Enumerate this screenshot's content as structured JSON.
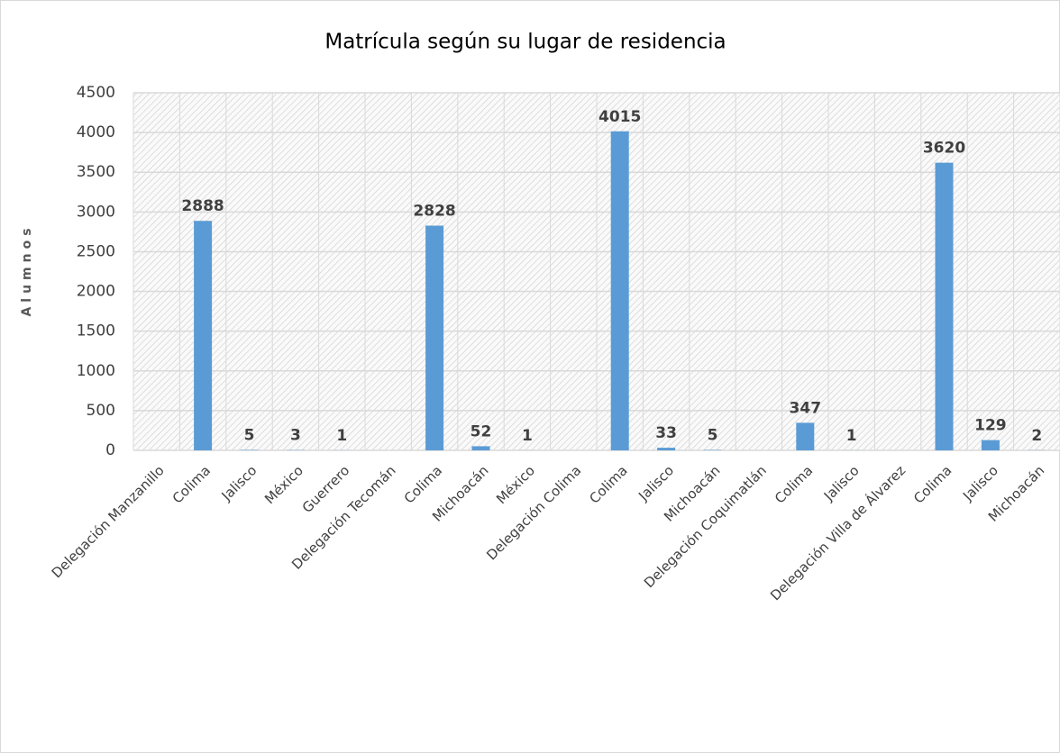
{
  "chart_data": {
    "type": "bar",
    "title": "Matrícula según su lugar de residencia",
    "y_label": "Alumnos",
    "categories": [
      "Delegación Manzanillo",
      "Colima",
      "Jalisco",
      "México",
      "Guerrero",
      "Delegación Tecomán",
      "Colima",
      "Michoacán",
      "México",
      "Delegación Colima",
      "Colima",
      "Jalisco",
      "Michoacán",
      "Delegación Coquimatlán",
      "Colima",
      "Jalisco",
      "Delegación Villa de Álvarez",
      "Colima",
      "Jalisco",
      "Michoacán"
    ],
    "values": [
      null,
      2888,
      5,
      3,
      1,
      null,
      2828,
      52,
      1,
      null,
      4015,
      33,
      5,
      null,
      347,
      1,
      null,
      3620,
      129,
      2
    ],
    "color": "#5b9bd5",
    "ylim": [
      0,
      4500
    ],
    "yticks": [
      0,
      500,
      1000,
      1500,
      2000,
      2500,
      3000,
      3500,
      4000,
      4500
    ],
    "grid": true
  }
}
